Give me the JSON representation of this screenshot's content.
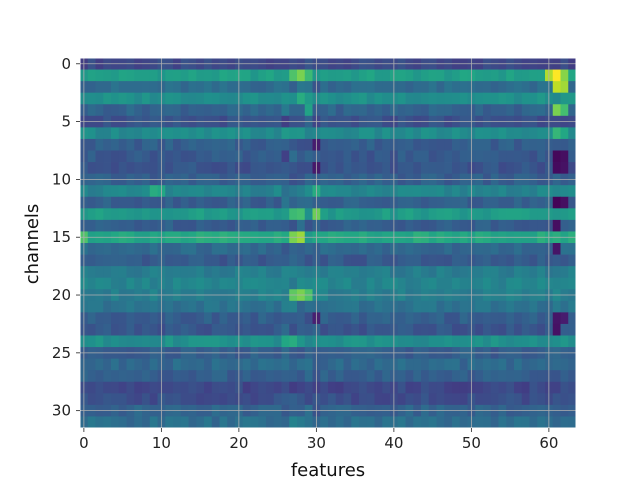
{
  "chart_data": {
    "type": "heatmap",
    "colormap": "viridis",
    "xlabel": "features",
    "ylabel": "channels",
    "n_cols": 64,
    "n_rows": 32,
    "xlim": [
      -0.5,
      63.5
    ],
    "ylim": [
      31.5,
      -0.5
    ],
    "xticks": [
      0,
      10,
      20,
      30,
      40,
      50,
      60
    ],
    "yticks": [
      0,
      5,
      10,
      15,
      20,
      25,
      30
    ],
    "grid": true,
    "row_base": [
      0.22,
      0.56,
      0.35,
      0.5,
      0.32,
      0.25,
      0.48,
      0.3,
      0.28,
      0.26,
      0.3,
      0.45,
      0.3,
      0.55,
      0.3,
      0.6,
      0.34,
      0.28,
      0.42,
      0.45,
      0.43,
      0.38,
      0.3,
      0.27,
      0.5,
      0.3,
      0.34,
      0.3,
      0.22,
      0.24,
      0.32,
      0.36
    ],
    "hot_spots": [
      {
        "x": 27,
        "y": 1,
        "v": 0.72
      },
      {
        "x": 28,
        "y": 1,
        "v": 0.8
      },
      {
        "x": 29,
        "y": 1,
        "v": 0.68
      },
      {
        "x": 28,
        "y": 3,
        "v": 0.62
      },
      {
        "x": 29,
        "y": 4,
        "v": 0.58
      },
      {
        "x": 30,
        "y": 11,
        "v": 0.62
      },
      {
        "x": 9,
        "y": 11,
        "v": 0.62
      },
      {
        "x": 10,
        "y": 11,
        "v": 0.6
      },
      {
        "x": 27,
        "y": 13,
        "v": 0.68
      },
      {
        "x": 28,
        "y": 13,
        "v": 0.7
      },
      {
        "x": 30,
        "y": 13,
        "v": 0.78
      },
      {
        "x": 27,
        "y": 15,
        "v": 0.8
      },
      {
        "x": 28,
        "y": 15,
        "v": 0.85
      },
      {
        "x": 0,
        "y": 15,
        "v": 0.72
      },
      {
        "x": 27,
        "y": 20,
        "v": 0.75
      },
      {
        "x": 28,
        "y": 20,
        "v": 0.8
      },
      {
        "x": 29,
        "y": 20,
        "v": 0.72
      },
      {
        "x": 26,
        "y": 24,
        "v": 0.6
      },
      {
        "x": 27,
        "y": 24,
        "v": 0.62
      },
      {
        "x": 60,
        "y": 1,
        "v": 0.88
      },
      {
        "x": 61,
        "y": 1,
        "v": 1.0
      },
      {
        "x": 62,
        "y": 1,
        "v": 0.82
      },
      {
        "x": 61,
        "y": 2,
        "v": 0.9
      },
      {
        "x": 62,
        "y": 2,
        "v": 0.86
      },
      {
        "x": 61,
        "y": 4,
        "v": 0.8
      },
      {
        "x": 62,
        "y": 4,
        "v": 0.7
      },
      {
        "x": 61,
        "y": 6,
        "v": 0.66
      },
      {
        "x": 62,
        "y": 6,
        "v": 0.6
      }
    ],
    "cold_spots": [
      {
        "x": 61,
        "y": 8,
        "v": 0.02
      },
      {
        "x": 62,
        "y": 8,
        "v": 0.04
      },
      {
        "x": 61,
        "y": 9,
        "v": 0.03
      },
      {
        "x": 62,
        "y": 9,
        "v": 0.05
      },
      {
        "x": 61,
        "y": 12,
        "v": 0.01
      },
      {
        "x": 62,
        "y": 12,
        "v": 0.04
      },
      {
        "x": 61,
        "y": 14,
        "v": 0.04
      },
      {
        "x": 61,
        "y": 16,
        "v": 0.06
      },
      {
        "x": 61,
        "y": 22,
        "v": 0.06
      },
      {
        "x": 62,
        "y": 22,
        "v": 0.08
      },
      {
        "x": 61,
        "y": 23,
        "v": 0.05
      },
      {
        "x": 30,
        "y": 7,
        "v": 0.08
      },
      {
        "x": 30,
        "y": 9,
        "v": 0.07
      },
      {
        "x": 30,
        "y": 22,
        "v": 0.09
      }
    ]
  }
}
